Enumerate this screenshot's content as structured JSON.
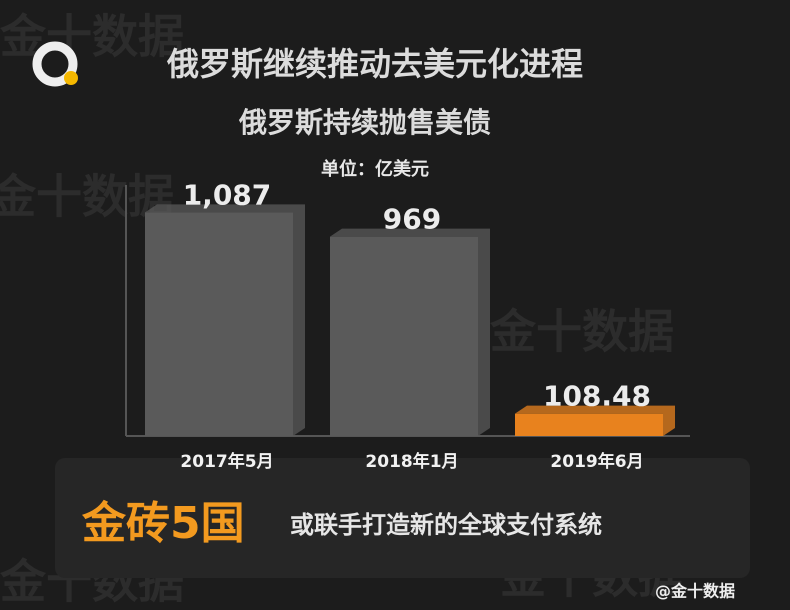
{
  "chart_data": {
    "type": "bar3d",
    "title": "俄罗斯继续推动去美元化进程",
    "subtitle": "俄罗斯持续抛售美债",
    "unit": "单位：亿美元",
    "categories": [
      "2017年5月",
      "2018年1月",
      "2019年6月"
    ],
    "values": [
      1087,
      969,
      108.48
    ],
    "value_labels": [
      "1,087",
      "969",
      "108.48"
    ],
    "colors": [
      "#5a5a5a",
      "#5a5a5a",
      "#e8821e"
    ],
    "ylim": [
      0,
      1220
    ],
    "headline": "金砖5国",
    "headline_rest": "或联手打造新的全球支付系统",
    "watermark": "金十数据",
    "credit": "@金十数据"
  }
}
